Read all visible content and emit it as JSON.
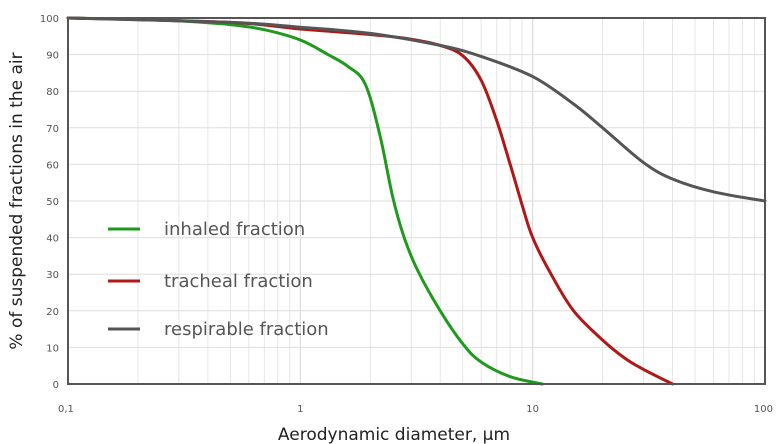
{
  "chart_data": {
    "type": "line",
    "xlabel": "Aerodynamic diameter, µm",
    "ylabel": "% of suspended fractions in the air",
    "x_scale": "log",
    "xlim": [
      0.1,
      100
    ],
    "ylim": [
      0,
      100
    ],
    "x_ticks": [
      {
        "value": 0.1,
        "label": "0,1"
      },
      {
        "value": 1,
        "label": "1"
      },
      {
        "value": 10,
        "label": "10"
      },
      {
        "value": 100,
        "label": "100"
      }
    ],
    "y_ticks": [
      0,
      10,
      20,
      30,
      40,
      50,
      60,
      70,
      80,
      90,
      100
    ],
    "grid": true,
    "legend_position": "left",
    "series": [
      {
        "name": "inhaled fraction",
        "color": "#1f9a1f",
        "points": [
          [
            0.1,
            100
          ],
          [
            0.2,
            99.6
          ],
          [
            0.3,
            99.2
          ],
          [
            0.5,
            98.2
          ],
          [
            0.7,
            96.8
          ],
          [
            1.0,
            94.0
          ],
          [
            1.3,
            90.2
          ],
          [
            1.6,
            86.8
          ],
          [
            1.9,
            82.0
          ],
          [
            2.2,
            68.0
          ],
          [
            2.5,
            51.0
          ],
          [
            2.8,
            40.0
          ],
          [
            3.2,
            31.0
          ],
          [
            4.0,
            20.0
          ],
          [
            5.0,
            11.0
          ],
          [
            6.0,
            6.0
          ],
          [
            8.0,
            2.0
          ],
          [
            11.0,
            0.0
          ]
        ]
      },
      {
        "name": "tracheal fraction",
        "color": "#b01818",
        "points": [
          [
            0.1,
            100
          ],
          [
            0.5,
            98.8
          ],
          [
            1.0,
            97.0
          ],
          [
            2.0,
            95.5
          ],
          [
            3.0,
            94.2
          ],
          [
            4.0,
            92.5
          ],
          [
            5.0,
            89.7
          ],
          [
            6.0,
            83.0
          ],
          [
            7.0,
            72.0
          ],
          [
            8.0,
            60.0
          ],
          [
            9.0,
            49.0
          ],
          [
            10.0,
            40.0
          ],
          [
            12.0,
            30.0
          ],
          [
            15.0,
            20.0
          ],
          [
            20.0,
            12.0
          ],
          [
            25.0,
            7.0
          ],
          [
            30.0,
            4.0
          ],
          [
            40.0,
            0.0
          ]
        ]
      },
      {
        "name": "respirable fraction",
        "color": "#555555",
        "points": [
          [
            0.1,
            100
          ],
          [
            0.5,
            98.8
          ],
          [
            1.0,
            97.5
          ],
          [
            2.0,
            95.8
          ],
          [
            4.0,
            92.5
          ],
          [
            6.0,
            89.5
          ],
          [
            10.0,
            84.0
          ],
          [
            15.0,
            76.5
          ],
          [
            20.0,
            70.0
          ],
          [
            30.0,
            60.5
          ],
          [
            40.0,
            56.0
          ],
          [
            60.0,
            52.5
          ],
          [
            100.0,
            50.0
          ]
        ]
      }
    ]
  }
}
